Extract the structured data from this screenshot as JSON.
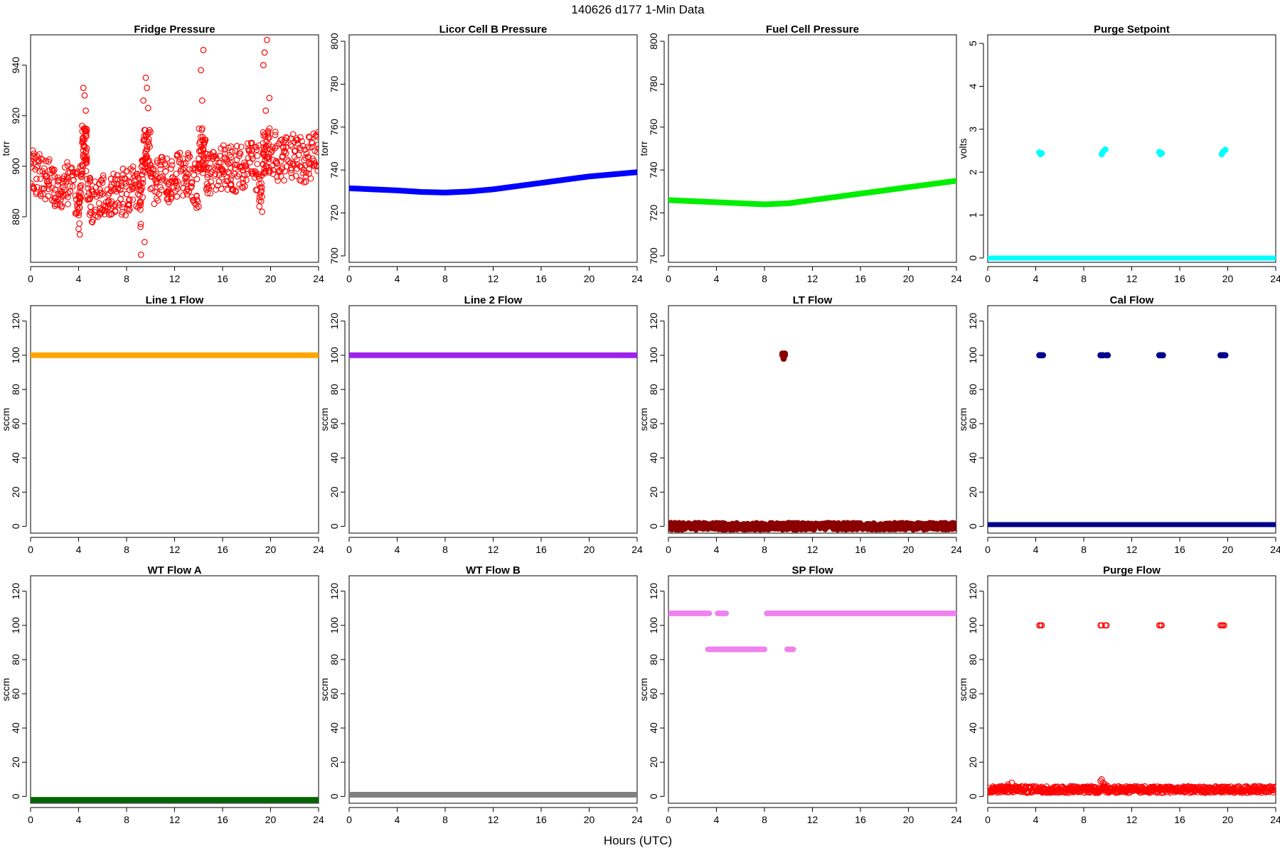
{
  "figure": {
    "title": "140626   d177   1-Min Data",
    "xlabel": "Hours (UTC)"
  },
  "chart_data": [
    {
      "type": "scatter",
      "title": "Fridge Pressure",
      "ylabel": "torr",
      "color": "#ff0000",
      "marker": "open",
      "xlim": [
        0,
        24
      ],
      "ylim": [
        862,
        952
      ],
      "xticks": [
        0,
        4,
        8,
        12,
        16,
        20,
        24
      ],
      "yticks": [
        880,
        900,
        920,
        940
      ],
      "series": [
        {
          "x": [
            0.0,
            0.5,
            1.0,
            1.5,
            2.0,
            2.5,
            3.0,
            3.5,
            4.0,
            4.1,
            4.3,
            4.4,
            4.6,
            4.7,
            5.0,
            5.5,
            6.0,
            6.5,
            7.0,
            7.5,
            8.0,
            8.5,
            9.0,
            9.2,
            9.4,
            9.6,
            9.8,
            10.0,
            10.5,
            11.0,
            11.5,
            12.0,
            12.5,
            13.0,
            13.5,
            14.0,
            14.2,
            14.4,
            14.6,
            15.0,
            15.5,
            16.0,
            16.5,
            17.0,
            17.5,
            18.0,
            18.5,
            19.0,
            19.3,
            19.5,
            19.7,
            19.9,
            20.5,
            21.0,
            21.5,
            22.0,
            22.5,
            23.0,
            23.5,
            24.0
          ],
          "y": [
            901,
            895,
            898,
            893,
            896,
            889,
            894,
            892,
            888,
            873,
            916,
            931,
            922,
            895,
            884,
            888,
            889,
            886,
            891,
            887,
            889,
            892,
            893,
            865,
            926,
            935,
            923,
            891,
            894,
            896,
            893,
            895,
            898,
            894,
            899,
            884,
            938,
            946,
            899,
            897,
            900,
            898,
            901,
            897,
            900,
            899,
            903,
            896,
            882,
            945,
            950,
            927,
            901,
            904,
            902,
            906,
            900,
            905,
            903,
            907
          ]
        },
        {
          "x": [
            0.2,
            0.8,
            1.3,
            1.8,
            2.3,
            2.8,
            3.3,
            3.8,
            4.5,
            5.2,
            5.7,
            6.2,
            6.7,
            7.2,
            7.7,
            8.2,
            8.7,
            9.5,
            9.7,
            10.2,
            10.7,
            11.2,
            11.7,
            12.2,
            12.7,
            13.2,
            13.7,
            14.3,
            14.8,
            15.2,
            15.7,
            16.2,
            16.7,
            17.2,
            17.7,
            18.2,
            18.7,
            19.4,
            19.6,
            20.2,
            20.7,
            21.2,
            21.7,
            22.2,
            22.7,
            23.2,
            23.7
          ],
          "y": [
            892,
            889,
            902,
            899,
            887,
            896,
            890,
            897,
            928,
            890,
            893,
            884,
            895,
            893,
            899,
            885,
            896,
            870,
            931,
            897,
            889,
            901,
            899,
            888,
            903,
            890,
            901,
            926,
            892,
            903,
            894,
            905,
            893,
            908,
            895,
            906,
            898,
            940,
            922,
            897,
            909,
            898,
            911,
            899,
            908,
            897,
            901
          ]
        }
      ]
    },
    {
      "type": "line",
      "title": "Licor Cell B Pressure",
      "ylabel": "torr",
      "color": "#0000ff",
      "xlim": [
        0,
        24
      ],
      "ylim": [
        697,
        803
      ],
      "xticks": [
        0,
        4,
        8,
        12,
        16,
        20,
        24
      ],
      "yticks": [
        700,
        720,
        740,
        760,
        780,
        800
      ],
      "series": [
        {
          "x": [
            0,
            2,
            4,
            6,
            8,
            10,
            12,
            14,
            16,
            18,
            20,
            22,
            24
          ],
          "y": [
            731.5,
            731,
            730.5,
            729.8,
            729.5,
            730,
            731,
            732.5,
            734,
            735.5,
            737,
            738,
            739
          ]
        }
      ]
    },
    {
      "type": "line",
      "title": "Fuel Cell Pressure",
      "ylabel": "torr",
      "color": "#00ee00",
      "xlim": [
        0,
        24
      ],
      "ylim": [
        697,
        803
      ],
      "xticks": [
        0,
        4,
        8,
        12,
        16,
        20,
        24
      ],
      "yticks": [
        700,
        720,
        740,
        760,
        780,
        800
      ],
      "series": [
        {
          "x": [
            0,
            2,
            4,
            6,
            8,
            10,
            12,
            14,
            16,
            18,
            20,
            22,
            24
          ],
          "y": [
            726,
            725.5,
            725,
            724.5,
            724,
            724.5,
            726,
            727.5,
            729,
            730.5,
            732,
            733.5,
            735
          ]
        }
      ]
    },
    {
      "type": "scatter",
      "title": "Purge Setpoint",
      "ylabel": "volts",
      "color": "#00ffff",
      "marker": "filled",
      "xlim": [
        0,
        24
      ],
      "ylim": [
        -0.1,
        5.2
      ],
      "xticks": [
        0,
        4,
        8,
        12,
        16,
        20,
        24
      ],
      "yticks": [
        0,
        1,
        2,
        3,
        4,
        5
      ],
      "baseline": {
        "x": [
          0,
          24
        ],
        "y": 0
      },
      "series": [
        {
          "x": [
            4.3,
            4.4,
            4.5,
            9.5,
            9.6,
            9.8,
            14.3,
            14.4,
            14.5,
            19.5,
            19.6,
            19.8
          ],
          "y": [
            2.46,
            2.42,
            2.44,
            2.42,
            2.48,
            2.53,
            2.47,
            2.42,
            2.44,
            2.42,
            2.47,
            2.52
          ]
        }
      ]
    },
    {
      "type": "line",
      "title": "Line 1 Flow",
      "ylabel": "sccm",
      "color": "#ffa500",
      "xlim": [
        0,
        24
      ],
      "ylim": [
        -4,
        129
      ],
      "xticks": [
        0,
        4,
        8,
        12,
        16,
        20,
        24
      ],
      "yticks": [
        0,
        20,
        40,
        60,
        80,
        100,
        120
      ],
      "series": [
        {
          "x": [
            0,
            24
          ],
          "y": [
            100,
            100
          ]
        }
      ]
    },
    {
      "type": "line",
      "title": "Line 2 Flow",
      "ylabel": "sccm",
      "color": "#a020f0",
      "xlim": [
        0,
        24
      ],
      "ylim": [
        -4,
        129
      ],
      "xticks": [
        0,
        4,
        8,
        12,
        16,
        20,
        24
      ],
      "yticks": [
        0,
        20,
        40,
        60,
        80,
        100,
        120
      ],
      "series": [
        {
          "x": [
            0,
            24
          ],
          "y": [
            100,
            100
          ]
        }
      ]
    },
    {
      "type": "scatter",
      "title": "LT Flow",
      "ylabel": "sccm",
      "color": "#8b0000",
      "marker": "band",
      "xlim": [
        0,
        24
      ],
      "ylim": [
        -4,
        129
      ],
      "xticks": [
        0,
        4,
        8,
        12,
        16,
        20,
        24
      ],
      "yticks": [
        0,
        20,
        40,
        60,
        80,
        100,
        120
      ],
      "baseline": {
        "x": [
          0,
          24
        ],
        "y": 0,
        "spread": 2
      },
      "series": [
        {
          "x": [
            9.5,
            9.6,
            9.7,
            9.6,
            9.5,
            9.7
          ],
          "y": [
            101,
            99,
            100,
            98,
            100,
            101
          ]
        }
      ]
    },
    {
      "type": "scatter",
      "title": "Cal Flow",
      "ylabel": "sccm",
      "color": "#00008b",
      "marker": "filled",
      "xlim": [
        0,
        24
      ],
      "ylim": [
        -4,
        129
      ],
      "xticks": [
        0,
        4,
        8,
        12,
        16,
        20,
        24
      ],
      "yticks": [
        0,
        20,
        40,
        60,
        80,
        100,
        120
      ],
      "baseline": {
        "x": [
          0,
          24
        ],
        "y": 1
      },
      "series": [
        {
          "x": [
            4.3,
            4.4,
            4.5,
            4.6,
            9.4,
            9.5,
            9.6,
            9.9,
            10.0,
            14.3,
            14.4,
            14.5,
            14.6,
            19.4,
            19.5,
            19.6,
            19.7,
            19.8
          ],
          "y": [
            100,
            100,
            100,
            100,
            100,
            100,
            100,
            100,
            100,
            100,
            100,
            100,
            100,
            100,
            100,
            100,
            100,
            100
          ]
        }
      ]
    },
    {
      "type": "line",
      "title": "WT Flow A",
      "ylabel": "sccm",
      "color": "#006400",
      "xlim": [
        0,
        24
      ],
      "ylim": [
        -4,
        129
      ],
      "xticks": [
        0,
        4,
        8,
        12,
        16,
        20,
        24
      ],
      "yticks": [
        0,
        20,
        40,
        60,
        80,
        100,
        120
      ],
      "series": [
        {
          "x": [
            0,
            24
          ],
          "y": [
            -2,
            -2
          ]
        }
      ]
    },
    {
      "type": "line",
      "title": "WT Flow B",
      "ylabel": "sccm",
      "color": "#808080",
      "xlim": [
        0,
        24
      ],
      "ylim": [
        -4,
        129
      ],
      "xticks": [
        0,
        4,
        8,
        12,
        16,
        20,
        24
      ],
      "yticks": [
        0,
        20,
        40,
        60,
        80,
        100,
        120
      ],
      "series": [
        {
          "x": [
            0,
            24
          ],
          "y": [
            1,
            1
          ]
        }
      ]
    },
    {
      "type": "line",
      "title": "SP Flow",
      "ylabel": "sccm",
      "color": "#ee82ee",
      "xlim": [
        0,
        24
      ],
      "ylim": [
        -4,
        129
      ],
      "xticks": [
        0,
        4,
        8,
        12,
        16,
        20,
        24
      ],
      "yticks": [
        0,
        20,
        40,
        60,
        80,
        100,
        120
      ],
      "series": [
        {
          "x": [
            0,
            3.4
          ],
          "y": [
            107,
            107
          ]
        },
        {
          "x": [
            4.1,
            4.8
          ],
          "y": [
            107,
            107
          ]
        },
        {
          "x": [
            8.2,
            24
          ],
          "y": [
            107,
            107
          ]
        },
        {
          "x": [
            3.3,
            8.0
          ],
          "y": [
            86,
            86
          ]
        },
        {
          "x": [
            9.9,
            10.4
          ],
          "y": [
            86,
            86
          ]
        }
      ]
    },
    {
      "type": "scatter",
      "title": "Purge Flow",
      "ylabel": "sccm",
      "color": "#ff0000",
      "marker": "open",
      "xlim": [
        0,
        24
      ],
      "ylim": [
        -4,
        129
      ],
      "xticks": [
        0,
        4,
        8,
        12,
        16,
        20,
        24
      ],
      "yticks": [
        0,
        20,
        40,
        60,
        80,
        100,
        120
      ],
      "baseline": {
        "x": [
          0,
          24
        ],
        "y": 4,
        "spread": 2
      },
      "series": [
        {
          "x": [
            1.7,
            2.0,
            2.3,
            9.4,
            9.5,
            9.6,
            9.8,
            10.0
          ],
          "y": [
            7,
            8,
            6,
            9,
            10,
            8,
            7,
            6
          ]
        },
        {
          "x": [
            4.3,
            4.4,
            4.5,
            9.4,
            9.5,
            9.8,
            9.9,
            14.3,
            14.4,
            14.5,
            19.4,
            19.5,
            19.6,
            19.7
          ],
          "y": [
            100,
            100,
            100,
            100,
            100,
            100,
            100,
            100,
            100,
            100,
            100,
            100,
            100,
            100
          ]
        }
      ]
    }
  ]
}
